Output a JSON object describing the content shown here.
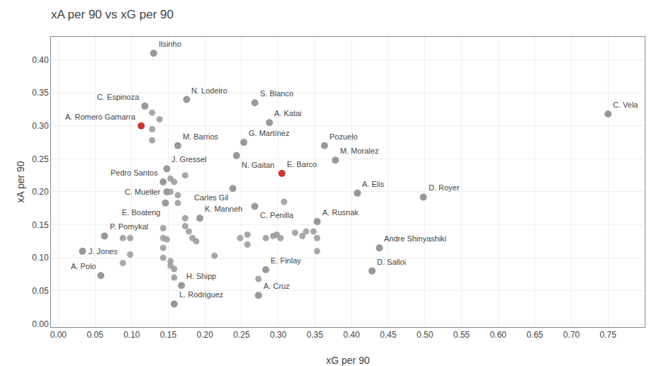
{
  "chart_data": {
    "type": "scatter",
    "title": "xA per 90 vs xG per 90",
    "x_label": "xG per 90",
    "y_label": "xA per 90",
    "xlim": [
      -0.01,
      0.8
    ],
    "ylim": [
      -0.005,
      0.435
    ],
    "xticks": [
      {
        "value": 0.0,
        "label": "0.00"
      },
      0.05,
      {
        "value": 0.1,
        "label": "0.10"
      },
      0.15,
      {
        "value": 0.2,
        "label": "0.20"
      },
      0.25,
      {
        "value": 0.3,
        "label": "0.30"
      },
      0.35,
      {
        "value": 0.4,
        "label": "0.40"
      },
      0.45,
      {
        "value": 0.5,
        "label": "0.50"
      },
      0.55,
      {
        "value": 0.6,
        "label": "0.60"
      },
      0.65,
      {
        "value": 0.7,
        "label": "0.70"
      },
      0.75
    ],
    "yticks": [
      {
        "value": 0.0,
        "label": "0.00"
      },
      0.05,
      {
        "value": 0.1,
        "label": "0.10"
      },
      0.15,
      {
        "value": 0.2,
        "label": "0.20"
      },
      0.25,
      {
        "value": 0.3,
        "label": "0.30"
      },
      0.35,
      {
        "value": 0.4,
        "label": "0.40"
      }
    ],
    "grid": true,
    "series": [
      {
        "color": "#999999",
        "x": [
          0.128,
          0.128,
          0.128,
          0.138,
          0.153,
          0.158,
          0.153,
          0.163,
          0.173,
          0.163,
          0.173,
          0.173,
          0.178,
          0.183,
          0.188,
          0.148,
          0.143,
          0.143,
          0.143,
          0.098,
          0.098,
          0.088,
          0.088,
          0.143,
          0.153,
          0.153,
          0.158,
          0.158,
          0.213,
          0.248,
          0.258,
          0.258,
          0.273,
          0.283,
          0.293,
          0.298,
          0.303,
          0.308,
          0.323,
          0.333,
          0.338,
          0.348,
          0.353,
          0.353
        ],
        "values": [
          0.32,
          0.295,
          0.278,
          0.31,
          0.22,
          0.215,
          0.2,
          0.195,
          0.225,
          0.183,
          0.148,
          0.16,
          0.14,
          0.13,
          0.125,
          0.128,
          0.115,
          0.13,
          0.145,
          0.13,
          0.105,
          0.13,
          0.092,
          0.1,
          0.095,
          0.088,
          0.083,
          0.07,
          0.103,
          0.13,
          0.135,
          0.12,
          0.068,
          0.13,
          0.133,
          0.135,
          0.13,
          0.185,
          0.138,
          0.133,
          0.14,
          0.14,
          0.13,
          0.11
        ]
      },
      {
        "x": [
          0.13,
          0.118,
          0.175,
          0.268,
          0.288,
          0.113,
          0.163,
          0.253,
          0.243,
          0.363,
          0.378,
          0.148,
          0.143,
          0.305,
          0.148,
          0.408,
          0.146,
          0.238,
          0.268,
          0.498,
          0.193,
          0.353,
          0.063,
          0.033,
          0.058,
          0.438,
          0.168,
          0.158,
          0.283,
          0.428,
          0.273,
          0.75
        ],
        "values": [
          0.41,
          0.33,
          0.34,
          0.335,
          0.305,
          0.3,
          0.27,
          0.275,
          0.255,
          0.27,
          0.248,
          0.235,
          0.215,
          0.228,
          0.2,
          0.198,
          0.183,
          0.205,
          0.178,
          0.192,
          0.16,
          0.155,
          0.133,
          0.11,
          0.073,
          0.115,
          0.058,
          0.03,
          0.082,
          0.08,
          0.043,
          0.318
        ],
        "colors": [
          "#999999",
          "#999999",
          "#999999",
          "#999999",
          "#999999",
          "#cc3333",
          "#999999",
          "#999999",
          "#999999",
          "#999999",
          "#999999",
          "#999999",
          "#999999",
          "#cc3333",
          "#999999",
          "#999999",
          "#999999",
          "#999999",
          "#999999",
          "#999999",
          "#999999",
          "#999999",
          "#999999",
          "#999999",
          "#999999",
          "#999999",
          "#999999",
          "#999999",
          "#999999",
          "#999999",
          "#999999",
          "#999999"
        ],
        "annotations": [
          "Ilsinho",
          "C. Espinoza",
          "N. Lodeiro",
          "S. Blanco",
          "A. Katai",
          "A. Romero Gamarra",
          "M. Barrios",
          "G. Martínez",
          "N. Gaitan",
          "Pozuelo",
          "M. Moralez",
          "J. Gressel",
          "Pedro Santos",
          "E. Barco",
          "C. Mueller",
          "A. Elis",
          "E. Boateng",
          "Carles Gil",
          "C. Penilla",
          "D. Royer",
          "K. Manneh",
          "A. Rusnak",
          "P. Pomykal",
          "J. Jones",
          "A. Polo",
          "Andre Shinyashiki",
          "H. Shipp",
          "L. Rodriguez",
          "E. Finlay",
          "D. Salloi",
          "A. Cruz",
          "C. Vela"
        ]
      }
    ]
  }
}
